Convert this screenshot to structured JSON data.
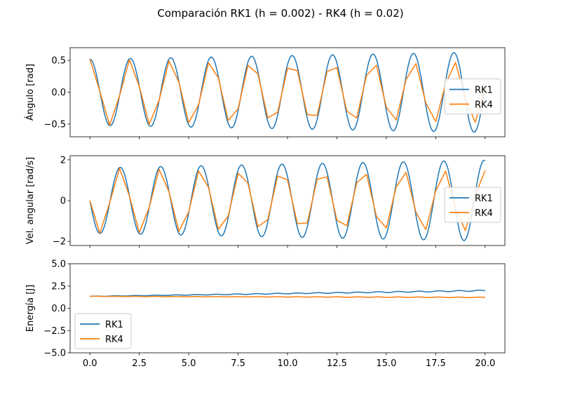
{
  "suptitle": "Comparación RK1 (h = 0.002) - RK4 (h = 0.02)",
  "chart_data": [
    {
      "type": "line",
      "ylabel": "Ángulo [rad]",
      "xlim": [
        -1.0,
        21.0
      ],
      "ylim": [
        -0.7,
        0.7
      ],
      "yticks": [
        -0.5,
        0.0,
        0.5
      ],
      "ytick_labels": [
        "−0.5",
        "0.0",
        "0.5"
      ],
      "show_xtick_labels": false,
      "legend": "center-right",
      "grid": false,
      "wave": {
        "kind": "angle",
        "omega": 3.07,
        "t_end": 20.0
      },
      "series": [
        {
          "name": "RK1",
          "color": "#1f77b4",
          "amp_start": 0.52,
          "amp_end": 0.63,
          "samples": 600
        },
        {
          "name": "RK4",
          "color": "#ff7f0e",
          "amp_start": 0.52,
          "amp_end": 0.48,
          "samples": 41
        }
      ]
    },
    {
      "type": "line",
      "ylabel": "Vel. angular [rad/s]",
      "xlim": [
        -1.0,
        21.0
      ],
      "ylim": [
        -2.2,
        2.2
      ],
      "yticks": [
        -2,
        0,
        2
      ],
      "ytick_labels": [
        "−2",
        "0",
        "2"
      ],
      "show_xtick_labels": false,
      "legend": "center-right",
      "grid": false,
      "wave": {
        "kind": "velocity",
        "omega": 3.07,
        "t_end": 20.0
      },
      "series": [
        {
          "name": "RK1",
          "color": "#1f77b4",
          "amp_start": 1.6,
          "amp_end": 1.98,
          "samples": 600
        },
        {
          "name": "RK4",
          "color": "#ff7f0e",
          "amp_start": 1.6,
          "amp_end": 1.5,
          "samples": 41
        }
      ]
    },
    {
      "type": "line",
      "ylabel": "Energía [J]",
      "xlim": [
        -1.0,
        21.0
      ],
      "ylim": [
        -5.0,
        5.0
      ],
      "yticks": [
        -5.0,
        -2.5,
        0.0,
        2.5,
        5.0
      ],
      "ytick_labels": [
        "−5.0",
        "−2.5",
        "0.0",
        "2.5",
        "5.0"
      ],
      "xticks": [
        0.0,
        2.5,
        5.0,
        7.5,
        10.0,
        12.5,
        15.0,
        17.5,
        20.0
      ],
      "xtick_labels": [
        "0.0",
        "2.5",
        "5.0",
        "7.5",
        "10.0",
        "12.5",
        "15.0",
        "17.5",
        "20.0"
      ],
      "show_xtick_labels": true,
      "legend": "lower-left",
      "grid": false,
      "wave": {
        "kind": "energy",
        "omega": 3.07,
        "t_end": 20.0
      },
      "series": [
        {
          "name": "RK1",
          "color": "#1f77b4",
          "value_start": 1.34,
          "value_end": 1.98,
          "ripple": 0.04,
          "samples": 600
        },
        {
          "name": "RK4",
          "color": "#ff7f0e",
          "value_start": 1.34,
          "value_end": 1.22,
          "ripple": 0.02,
          "samples": 600
        }
      ]
    }
  ]
}
